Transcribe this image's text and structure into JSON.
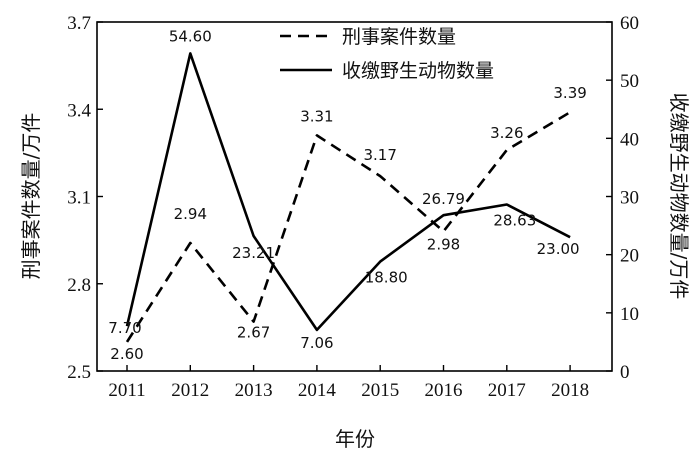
{
  "chart_data": {
    "type": "line",
    "title": "",
    "xlabel": "年份",
    "ylabel_left": "刑事案件数量/万件",
    "ylabel_right": "收缴野生动物数量/万件",
    "x": [
      "2011",
      "2012",
      "2013",
      "2014",
      "2015",
      "2016",
      "2017",
      "2018"
    ],
    "ylim_left": [
      2.5,
      3.7
    ],
    "ylim_right": [
      0,
      60
    ],
    "yticks_left": [
      "2.5",
      "2.8",
      "3.1",
      "3.4",
      "3.7"
    ],
    "yticks_right": [
      "0",
      "10",
      "20",
      "30",
      "40",
      "50",
      "60"
    ],
    "grid": false,
    "legend_position": "top-center",
    "series": [
      {
        "name": "刑事案件数量",
        "axis": "left",
        "style": "dashed",
        "color": "#000000",
        "values": [
          2.6,
          2.94,
          2.67,
          3.31,
          3.17,
          2.98,
          3.26,
          3.39
        ],
        "labels": [
          "2.60",
          "2.94",
          "2.67",
          "3.31",
          "3.17",
          "2.98",
          "3.26",
          "3.39"
        ]
      },
      {
        "name": "收缴野生动物数量",
        "axis": "right",
        "style": "solid",
        "color": "#000000",
        "values": [
          7.7,
          54.6,
          23.21,
          7.06,
          18.8,
          26.79,
          28.63,
          23.0
        ],
        "labels": [
          "7.70",
          "54.60",
          "23.21",
          "7.06",
          "18.80",
          "26.79",
          "28.63",
          "23.00"
        ]
      }
    ]
  }
}
